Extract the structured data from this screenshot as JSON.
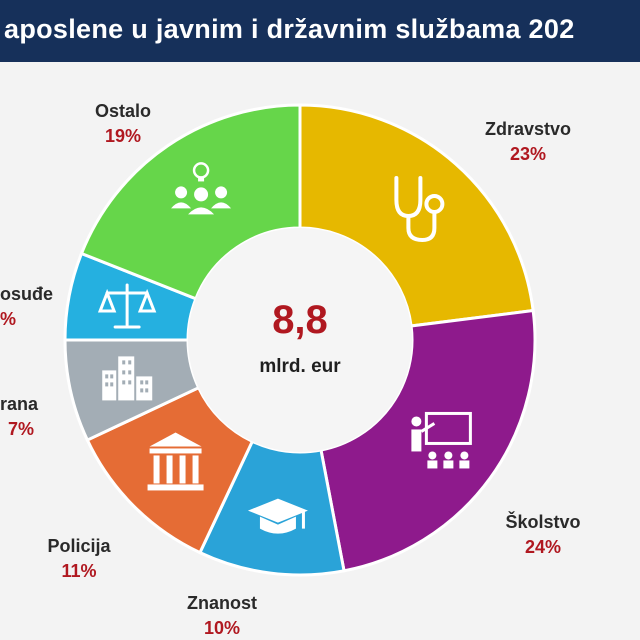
{
  "header": {
    "title": "aposlene u javnim i državnim službama 202"
  },
  "center": {
    "value": "8,8",
    "unit": "mlrd. eur"
  },
  "chart_data": {
    "type": "pie",
    "title": "aposlene u javnim i državnim službama 202",
    "total": "8,8 mlrd. eur",
    "slices": [
      {
        "label": "Zdravstvo",
        "percent_label": "23%",
        "value": 23,
        "color": "#e6b800",
        "icon": "stethoscope-icon"
      },
      {
        "label": "Školstvo",
        "percent_label": "24%",
        "value": 24,
        "color": "#8e1a8c",
        "icon": "teacher-classroom-icon"
      },
      {
        "label": "Znanost",
        "percent_label": "10%",
        "value": 10,
        "color": "#2aa3d8",
        "icon": "graduation-cap-icon"
      },
      {
        "label": "Policija",
        "percent_label": "11%",
        "value": 11,
        "color": "#e56c35",
        "icon": "courthouse-icon"
      },
      {
        "label": "rana",
        "percent_label": "7%",
        "value": 7,
        "color": "#a3adb5",
        "icon": "buildings-icon"
      },
      {
        "label": "osuđe",
        "percent_label": "%",
        "value": 6,
        "color": "#25b0e0",
        "icon": "scales-icon"
      },
      {
        "label": "Ostalo",
        "percent_label": "19%",
        "value": 19,
        "color": "#66d64a",
        "icon": "people-idea-icon"
      }
    ]
  }
}
